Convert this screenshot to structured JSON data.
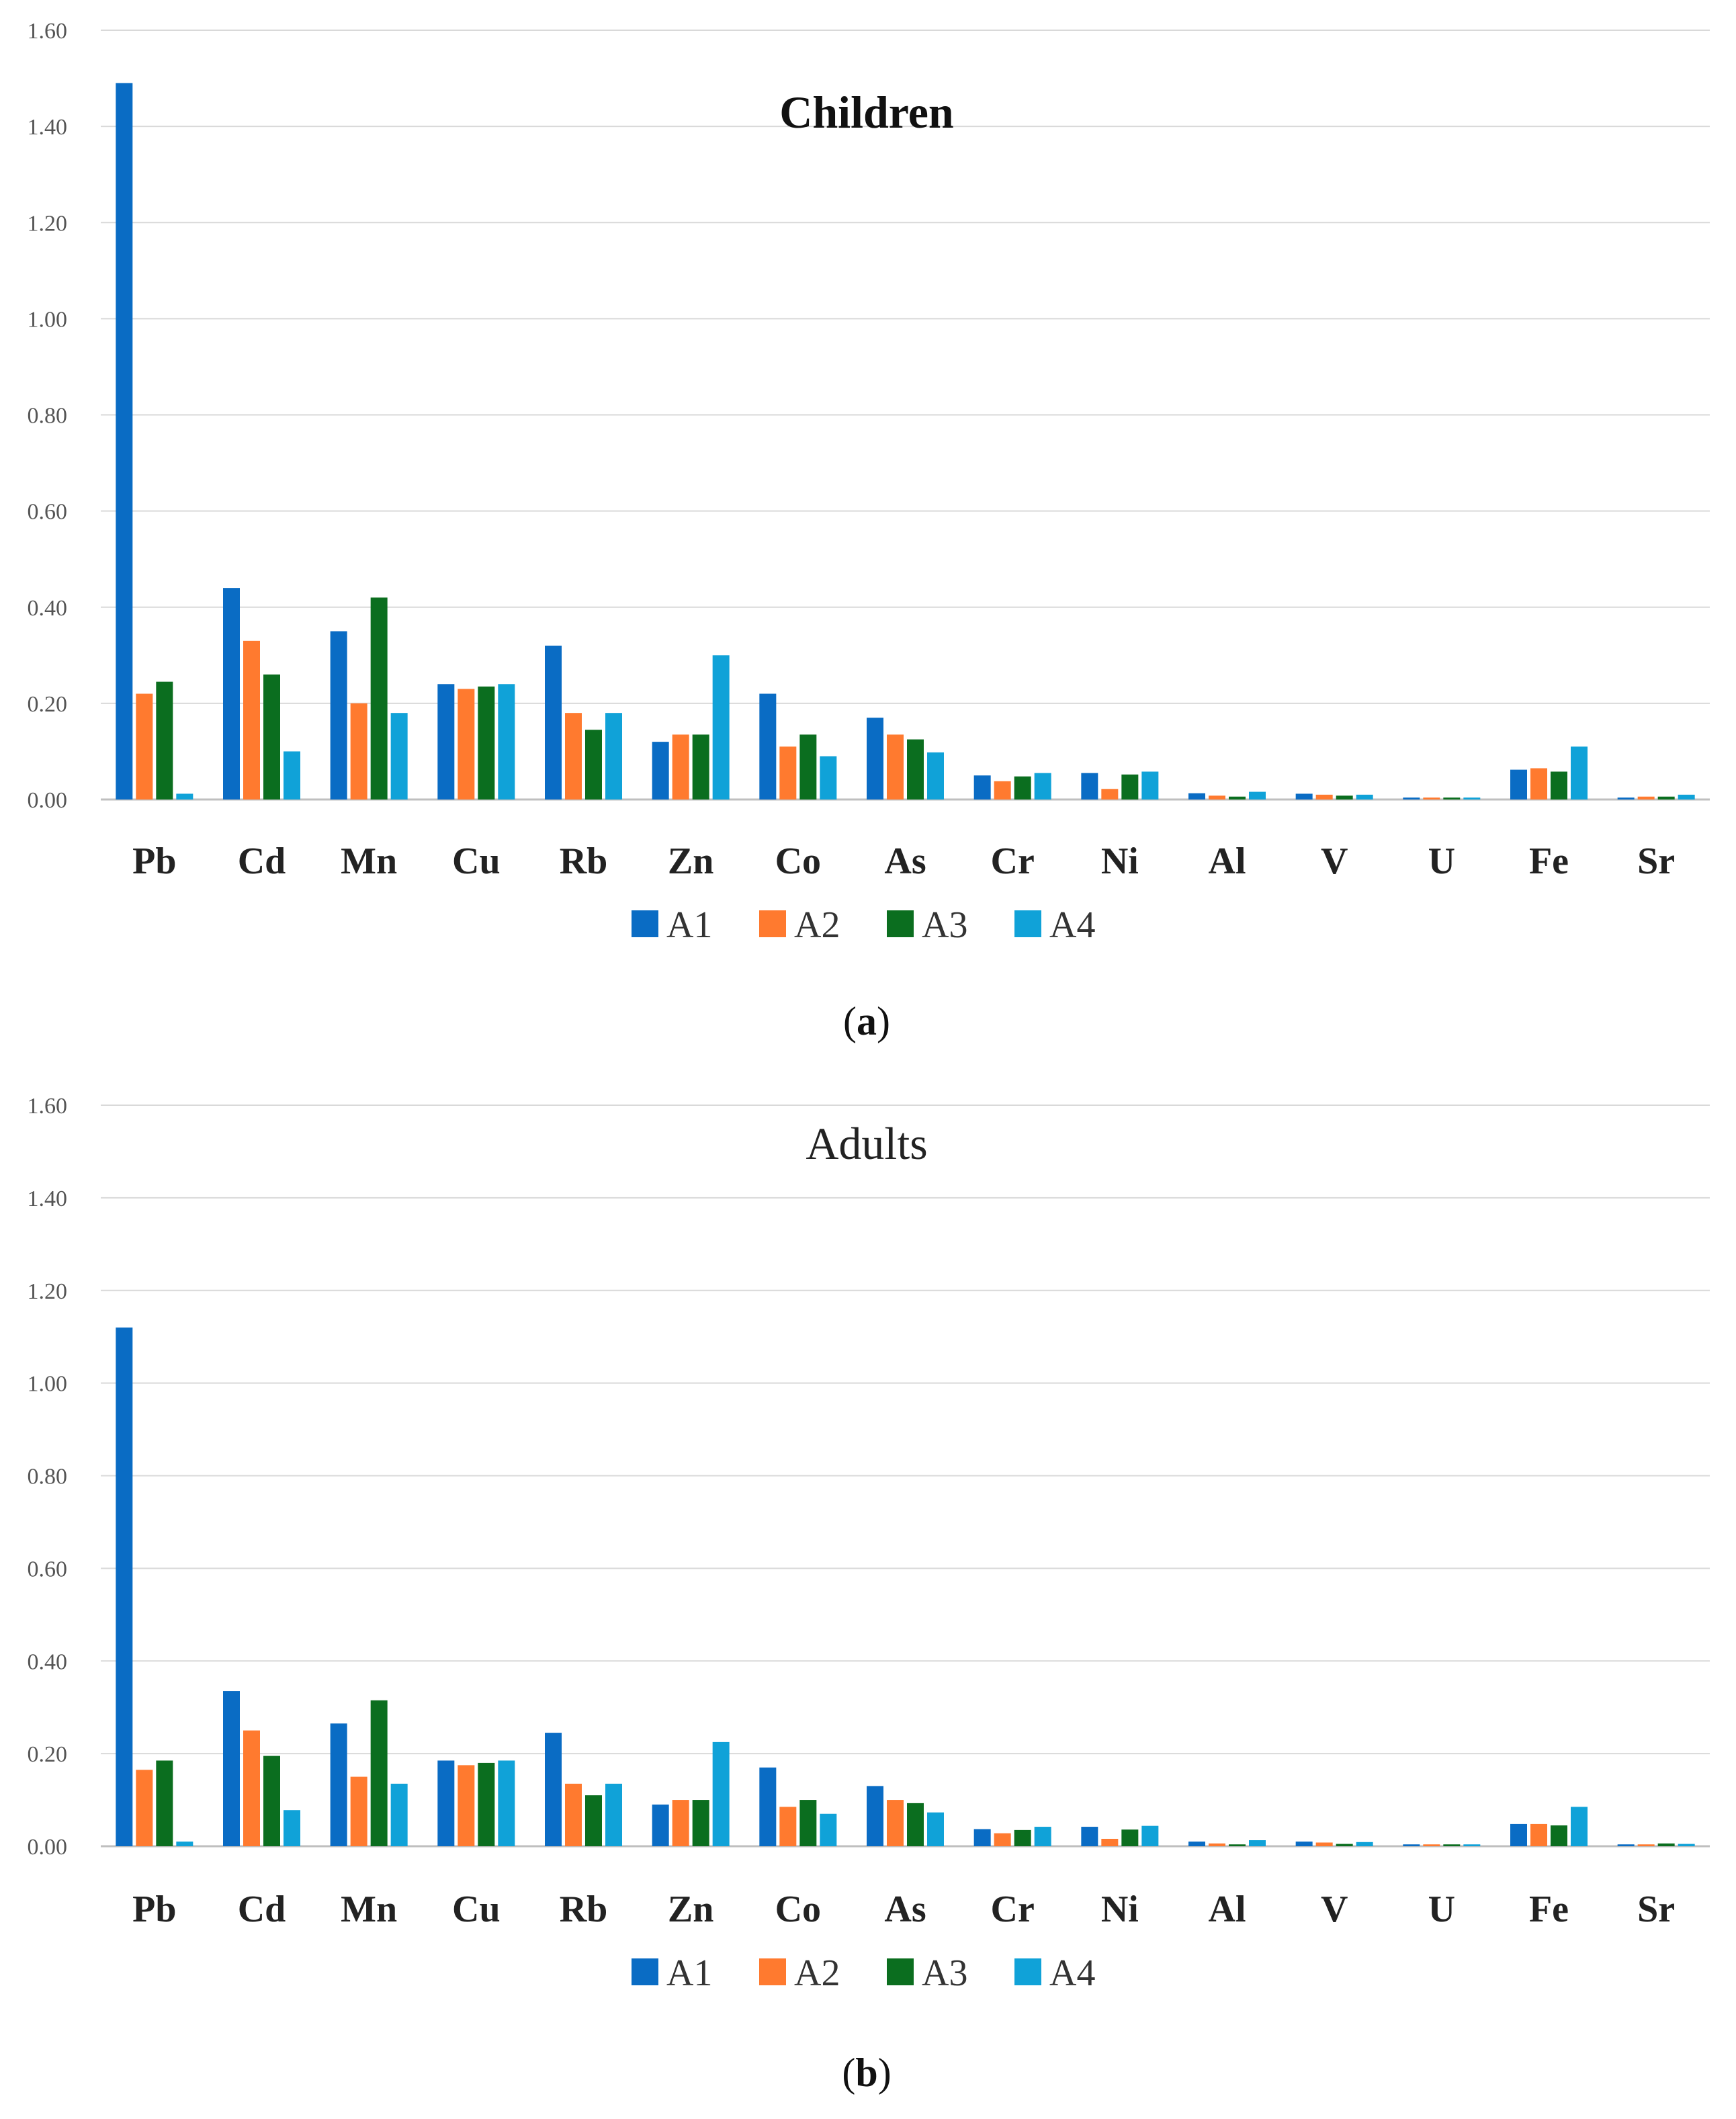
{
  "colors": {
    "A1": "#0A6CC4",
    "A2": "#FF7A2F",
    "A3": "#0B6E1F",
    "A4": "#10A2D8",
    "grid": "#D9D9D9",
    "axis": "#BFBFBF"
  },
  "chart_data": [
    {
      "type": "bar",
      "title": "Children",
      "title_weight": "bold",
      "caption": {
        "open": "(",
        "letter": "a",
        "close": ")"
      },
      "categories": [
        "Pb",
        "Cd",
        "Mn",
        "Cu",
        "Rb",
        "Zn",
        "Co",
        "As",
        "Cr",
        "Ni",
        "Al",
        "V",
        "U",
        "Fe",
        "Sr"
      ],
      "yticks": [
        "0.00",
        "0.20",
        "0.40",
        "0.60",
        "0.80",
        "1.00",
        "1.20",
        "1.40",
        "1.60"
      ],
      "ylim": [
        0,
        1.6
      ],
      "grid": true,
      "legend_position": "bottom",
      "series": [
        {
          "name": "A1",
          "values": [
            1.49,
            0.44,
            0.35,
            0.24,
            0.32,
            0.12,
            0.22,
            0.17,
            0.05,
            0.055,
            0.013,
            0.012,
            0.004,
            0.062,
            0.004
          ]
        },
        {
          "name": "A2",
          "values": [
            0.22,
            0.33,
            0.2,
            0.23,
            0.18,
            0.135,
            0.11,
            0.135,
            0.038,
            0.022,
            0.008,
            0.01,
            0.004,
            0.065,
            0.006
          ]
        },
        {
          "name": "A3",
          "values": [
            0.245,
            0.26,
            0.42,
            0.235,
            0.145,
            0.135,
            0.135,
            0.125,
            0.048,
            0.052,
            0.006,
            0.008,
            0.004,
            0.058,
            0.006
          ]
        },
        {
          "name": "A4",
          "values": [
            0.012,
            0.1,
            0.18,
            0.24,
            0.18,
            0.3,
            0.09,
            0.098,
            0.055,
            0.058,
            0.016,
            0.01,
            0.004,
            0.11,
            0.01
          ]
        }
      ]
    },
    {
      "type": "bar",
      "title": "Adults",
      "title_weight": "normal",
      "caption": {
        "open": "(",
        "letter": "b",
        "close": ")"
      },
      "categories": [
        "Pb",
        "Cd",
        "Mn",
        "Cu",
        "Rb",
        "Zn",
        "Co",
        "As",
        "Cr",
        "Ni",
        "Al",
        "V",
        "U",
        "Fe",
        "Sr"
      ],
      "yticks": [
        "0.00",
        "0.20",
        "0.40",
        "0.60",
        "0.80",
        "1.00",
        "1.20",
        "1.40",
        "1.60"
      ],
      "ylim": [
        0,
        1.6
      ],
      "grid": true,
      "legend_position": "bottom",
      "series": [
        {
          "name": "A1",
          "values": [
            1.12,
            0.335,
            0.265,
            0.185,
            0.245,
            0.09,
            0.17,
            0.13,
            0.037,
            0.042,
            0.01,
            0.01,
            0.004,
            0.048,
            0.004
          ]
        },
        {
          "name": "A2",
          "values": [
            0.165,
            0.25,
            0.15,
            0.175,
            0.135,
            0.1,
            0.085,
            0.1,
            0.028,
            0.016,
            0.006,
            0.008,
            0.004,
            0.048,
            0.004
          ]
        },
        {
          "name": "A3",
          "values": [
            0.185,
            0.195,
            0.315,
            0.18,
            0.11,
            0.1,
            0.1,
            0.093,
            0.035,
            0.036,
            0.004,
            0.005,
            0.004,
            0.045,
            0.006
          ]
        },
        {
          "name": "A4",
          "values": [
            0.01,
            0.078,
            0.135,
            0.185,
            0.135,
            0.225,
            0.07,
            0.073,
            0.042,
            0.044,
            0.013,
            0.009,
            0.004,
            0.085,
            0.005
          ]
        }
      ]
    }
  ]
}
